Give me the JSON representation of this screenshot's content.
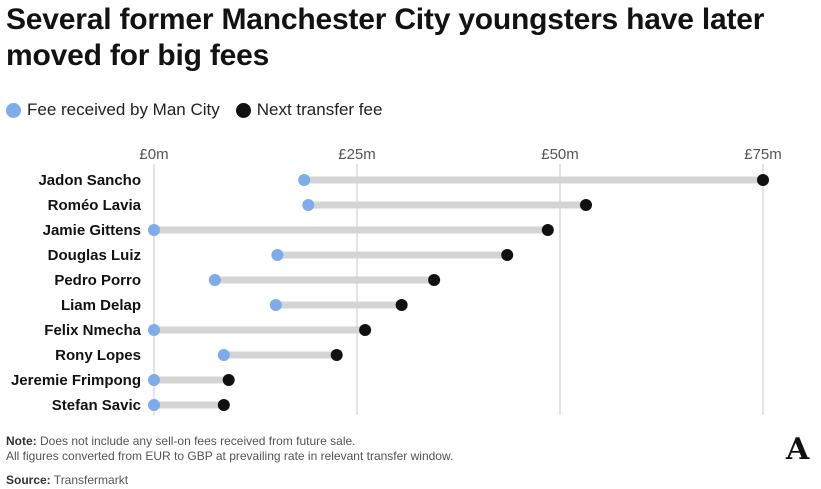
{
  "title": "Several former Manchester City youngsters have later moved for big fees",
  "legend": [
    {
      "label": "Fee received by Man City",
      "color": "#7eabea"
    },
    {
      "label": "Next transfer fee",
      "color": "#111111"
    }
  ],
  "note_label": "Note:",
  "note_text": " Does not include any sell-on fees received from future sale.",
  "note_line2": "All figures converted from EUR to GBP at prevailing rate in relevant transfer window.",
  "source_label": "Source:",
  "source_text": " Transfermarkt",
  "logo": "A",
  "chart_data": {
    "type": "dumbbell",
    "xlim": [
      0,
      75
    ],
    "xticks": [
      0,
      25,
      50,
      75
    ],
    "xtick_labels": [
      "£0m",
      "£25m",
      "£50m",
      "£75m"
    ],
    "grid": true,
    "legend_position": "top-left",
    "series": [
      {
        "name": "Fee received by Man City",
        "color": "#7eabea"
      },
      {
        "name": "Next transfer fee",
        "color": "#111111"
      }
    ],
    "categories": [
      "Jadon Sancho",
      "Roméo Lavia",
      "Jamie Gittens",
      "Douglas Luiz",
      "Pedro Porro",
      "Liam Delap",
      "Felix Nmecha",
      "Rony Lopes",
      "Jeremie Frimpong",
      "Stefan Savic"
    ],
    "fee_received": [
      18.5,
      19,
      0,
      15.2,
      7.5,
      15,
      0,
      8.6,
      0,
      0
    ],
    "next_fee": [
      75,
      53.2,
      48.5,
      43.5,
      34.5,
      30.5,
      26,
      22.5,
      9.2,
      8.6
    ]
  }
}
